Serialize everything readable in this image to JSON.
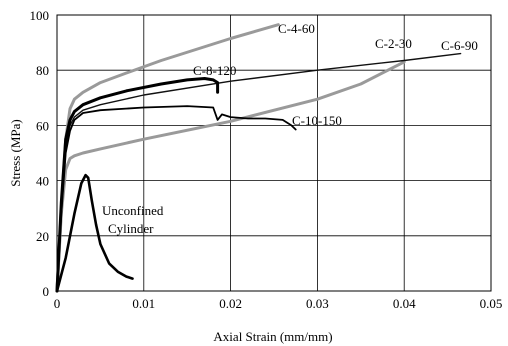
{
  "chart_data": {
    "type": "line",
    "title": "",
    "xlabel": "Axial Strain (mm/mm)",
    "ylabel": "Stress (MPa)",
    "xlim": [
      0,
      0.05
    ],
    "ylim": [
      0,
      100
    ],
    "x_ticks": [
      0,
      0.01,
      0.02,
      0.03,
      0.04,
      0.05
    ],
    "x_tick_labels": [
      "0",
      "0.01",
      "0.02",
      "0.03",
      "0.04",
      "0.05"
    ],
    "y_ticks": [
      0,
      20,
      40,
      60,
      80,
      100
    ],
    "y_tick_labels": [
      "0",
      "20",
      "40",
      "60",
      "80",
      "100"
    ],
    "grid": true,
    "series": [
      {
        "name": "C-4-60",
        "color": "#9a9a9a",
        "x": [
          0,
          0.0005,
          0.001,
          0.0015,
          0.002,
          0.003,
          0.005,
          0.008,
          0.012,
          0.016,
          0.02,
          0.0255
        ],
        "y": [
          0,
          30,
          55,
          66,
          69.5,
          72,
          75.5,
          79,
          83.5,
          87.5,
          91.5,
          96.5
        ]
      },
      {
        "name": "C-2-30",
        "color": "#9a9a9a",
        "x": [
          0,
          0.0005,
          0.001,
          0.0015,
          0.002,
          0.003,
          0.005,
          0.01,
          0.02,
          0.03,
          0.035,
          0.04
        ],
        "y": [
          0,
          28,
          44,
          48,
          49,
          50,
          51.5,
          55,
          61.5,
          69.5,
          75,
          83
        ]
      },
      {
        "name": "C-6-90",
        "color": "#111111",
        "x": [
          0,
          0.0005,
          0.001,
          0.0015,
          0.002,
          0.003,
          0.005,
          0.01,
          0.02,
          0.03,
          0.04,
          0.0465
        ],
        "y": [
          0,
          30,
          52,
          60,
          63,
          65.5,
          67.5,
          71,
          76,
          80,
          83.5,
          86
        ]
      },
      {
        "name": "C-8-120",
        "color": "#000000",
        "x": [
          0,
          0.0005,
          0.001,
          0.0015,
          0.002,
          0.003,
          0.005,
          0.008,
          0.012,
          0.015,
          0.017,
          0.018,
          0.0185,
          0.0185
        ],
        "y": [
          0,
          32,
          55,
          62,
          65,
          67.5,
          70,
          72.5,
          75,
          76.5,
          77,
          76.5,
          75.5,
          72
        ]
      },
      {
        "name": "C-10-150",
        "color": "#000000",
        "x": [
          0,
          0.0005,
          0.001,
          0.0015,
          0.002,
          0.003,
          0.005,
          0.01,
          0.015,
          0.018,
          0.0185,
          0.019,
          0.02,
          0.022,
          0.024,
          0.026,
          0.027,
          0.0275
        ],
        "y": [
          0,
          28,
          50,
          58,
          62,
          64.5,
          65.5,
          66.5,
          67,
          66.5,
          62,
          64,
          63,
          62.5,
          62.5,
          62,
          60,
          58.5
        ]
      },
      {
        "name": "Unconfined Cylinder",
        "color": "#000000",
        "x": [
          0,
          0.001,
          0.002,
          0.0028,
          0.0033,
          0.0036,
          0.004,
          0.0045,
          0.005,
          0.006,
          0.007,
          0.008,
          0.0087
        ],
        "y": [
          0,
          12,
          28,
          39,
          42,
          41,
          33,
          24,
          17,
          10,
          7,
          5.2,
          4.5
        ]
      }
    ],
    "annotations": [
      {
        "text": "C-4-60",
        "series": "C-4-60"
      },
      {
        "text": "C-2-30",
        "series": "C-2-30"
      },
      {
        "text": "C-6-90",
        "series": "C-6-90"
      },
      {
        "text": "C-8-120",
        "series": "C-8-120"
      },
      {
        "text": "C-10-150",
        "series": "C-10-150"
      },
      {
        "text": "Unconfined",
        "series": "Unconfined Cylinder"
      },
      {
        "text": "Cylinder",
        "series": "Unconfined Cylinder"
      }
    ]
  }
}
